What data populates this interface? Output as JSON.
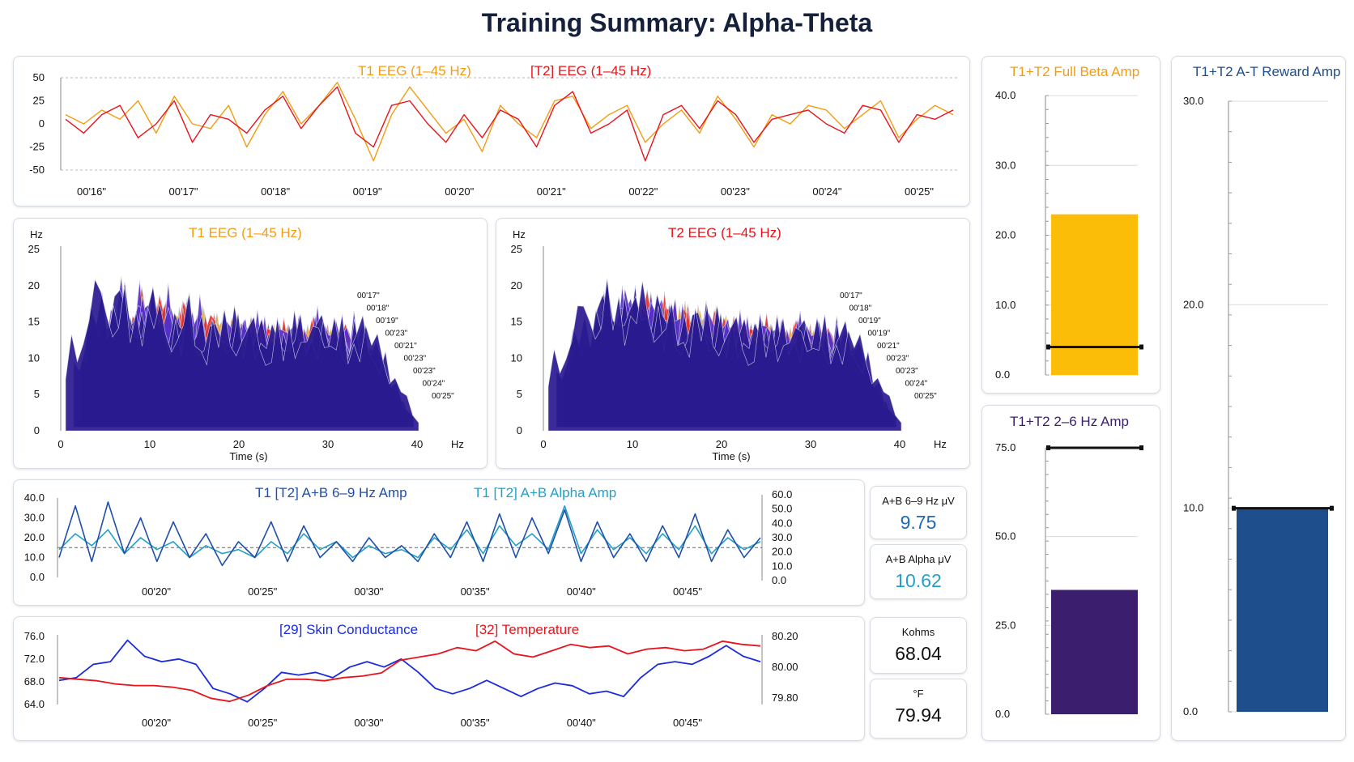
{
  "page": {
    "title": "Training Summary: Alpha-Theta"
  },
  "colors": {
    "t1": "#f39c12",
    "t2": "#e8131b",
    "ab69": "#1f4fa8",
    "alpha": "#23a0c8",
    "skin": "#1a2bdc",
    "temp": "#e8131b",
    "beta": "#fbbd08",
    "low": "#3b1e6e",
    "reward": "#1f4e8c"
  },
  "chart_data": [
    {
      "type": "line",
      "id": "eeg_raw",
      "title_t1": "T1 EEG (1–45 Hz)",
      "title_t2": "[T2] EEG (1–45 Hz)",
      "ylim": [
        -50,
        50
      ],
      "yticks": [
        "50",
        "25",
        "0",
        "-25",
        "-50"
      ],
      "xticks": [
        "00'16\"",
        "00'17\"",
        "00'18\"",
        "00'19\"",
        "00'20\"",
        "00'21\"",
        "00'22\"",
        "00'23\"",
        "00'24\"",
        "00'25\""
      ],
      "series": [
        {
          "values": [
            10,
            0,
            15,
            5,
            25,
            -10,
            30,
            0,
            -5,
            20,
            -25,
            10,
            35,
            0,
            20,
            45,
            5,
            -40,
            10,
            40,
            15,
            -10,
            5,
            -30,
            20,
            0,
            -15,
            25,
            30,
            -5,
            10,
            20,
            -20,
            0,
            15,
            -10,
            30,
            5,
            -25,
            10,
            0,
            20,
            15,
            -5,
            10,
            25,
            -15,
            5,
            20,
            10
          ]
        },
        {
          "values": [
            5,
            -10,
            10,
            20,
            -15,
            0,
            25,
            -20,
            10,
            5,
            -10,
            15,
            30,
            -5,
            20,
            40,
            -10,
            -25,
            20,
            25,
            0,
            -20,
            10,
            -15,
            15,
            5,
            -25,
            20,
            35,
            -10,
            0,
            15,
            -40,
            10,
            20,
            -5,
            25,
            10,
            -20,
            5,
            10,
            15,
            0,
            -10,
            20,
            15,
            -20,
            10,
            5,
            15
          ]
        }
      ]
    },
    {
      "type": "area",
      "id": "spectrum_t1",
      "title": "T1 EEG (1–45 Hz)",
      "ylabel": "Hz",
      "xlabel": "Time (s)",
      "xunit": "Hz",
      "yticks": [
        "25",
        "20",
        "15",
        "10",
        "5",
        "0"
      ],
      "xticks": [
        "0",
        "10",
        "20",
        "30",
        "40"
      ],
      "depth_labels": [
        "00'17\"",
        "00'18\"",
        "00'19\"",
        "00'23\"",
        "00'21\"",
        "00'23\"",
        "00'23\"",
        "00'24\"",
        "00'25\""
      ],
      "peak_profile": [
        14,
        18,
        25,
        25,
        23,
        21,
        24,
        20,
        19,
        22,
        17,
        19,
        20,
        18,
        19,
        17,
        18,
        19,
        17,
        20,
        18,
        17,
        19,
        16,
        12,
        6,
        2
      ]
    },
    {
      "type": "area",
      "id": "spectrum_t2",
      "title": "T2 EEG (1–45 Hz)",
      "ylabel": "Hz",
      "xlabel": "Time (s)",
      "xunit": "Hz",
      "yticks": [
        "25",
        "20",
        "15",
        "10",
        "5",
        "0"
      ],
      "xticks": [
        "0",
        "10",
        "20",
        "30",
        "40"
      ],
      "depth_labels": [
        "00'17\"",
        "00'18\"",
        "00'19\"",
        "00'19\"",
        "00'21\"",
        "00'23\"",
        "00'23\"",
        "00'24\"",
        "00'25\""
      ],
      "peak_profile": [
        12,
        15,
        20,
        24,
        23,
        25,
        22,
        24,
        21,
        20,
        19,
        21,
        20,
        18,
        19,
        17,
        19,
        18,
        17,
        19,
        18,
        17,
        18,
        16,
        12,
        6,
        2
      ]
    },
    {
      "type": "line",
      "id": "amp_69_alpha",
      "title_ab69": "T1 [T2] A+B 6–9 Hz Amp",
      "title_alpha": "T1 [T2] A+B Alpha Amp",
      "ylim": [
        0,
        40
      ],
      "yticks": [
        "40.0",
        "30.0",
        "20.0",
        "10.0",
        "0.0"
      ],
      "y2lim": [
        0,
        60
      ],
      "y2ticks": [
        "60.0",
        "50.0",
        "40.0",
        "30.0",
        "20.0",
        "10.0",
        "0.0"
      ],
      "threshold": 15,
      "xticks": [
        "00'20\"",
        "00'25\"",
        "00'30\"",
        "00'35\"",
        "00'40\"",
        "00'45\""
      ],
      "series": [
        {
          "values": [
            10,
            36,
            8,
            38,
            12,
            30,
            8,
            28,
            10,
            22,
            6,
            18,
            10,
            28,
            8,
            26,
            10,
            18,
            8,
            20,
            10,
            16,
            8,
            22,
            10,
            28,
            8,
            32,
            10,
            30,
            12,
            34,
            8,
            28,
            10,
            22,
            8,
            26,
            10,
            32,
            8,
            24,
            10,
            20
          ]
        },
        {
          "values": [
            14,
            22,
            16,
            24,
            12,
            20,
            14,
            18,
            10,
            16,
            12,
            14,
            10,
            18,
            12,
            22,
            14,
            18,
            10,
            16,
            12,
            14,
            10,
            20,
            14,
            24,
            12,
            26,
            16,
            22,
            14,
            36,
            12,
            24,
            14,
            20,
            12,
            22,
            14,
            26,
            12,
            20,
            14,
            18
          ]
        }
      ]
    },
    {
      "type": "line",
      "id": "skin_temp",
      "title_skin": "[29] Skin Conductance",
      "title_temp": "[32] Temperature",
      "ylim": [
        64,
        77
      ],
      "yticks": [
        "76.0",
        "72.0",
        "68.0",
        "64.0"
      ],
      "y2lim": [
        79.78,
        80.24
      ],
      "y2ticks": [
        "80.20",
        "80.00",
        "79.80"
      ],
      "xticks": [
        "00'20\"",
        "00'25\"",
        "00'30\"",
        "00'35\"",
        "00'40\"",
        "00'45\""
      ],
      "series": [
        {
          "values": [
            68.5,
            69,
            71.5,
            72,
            76,
            73,
            72,
            72.5,
            71.5,
            67,
            66,
            64.5,
            67,
            70,
            69.5,
            70,
            69,
            71,
            72,
            71,
            72.5,
            70,
            67,
            66,
            67,
            68.5,
            67,
            65.5,
            67,
            68,
            67.5,
            66,
            66.5,
            65.5,
            69,
            71.5,
            72,
            71.5,
            73,
            75,
            73,
            72
          ]
        },
        {
          "values": [
            79.97,
            79.96,
            79.95,
            79.93,
            79.92,
            79.92,
            79.91,
            79.89,
            79.84,
            79.82,
            79.86,
            79.92,
            79.96,
            79.96,
            79.95,
            79.97,
            79.98,
            80.0,
            80.08,
            80.1,
            80.12,
            80.16,
            80.14,
            80.2,
            80.12,
            80.1,
            80.14,
            80.18,
            80.16,
            80.17,
            80.12,
            80.15,
            80.16,
            80.14,
            80.15,
            80.2,
            80.18,
            80.17
          ]
        }
      ]
    },
    {
      "type": "bar",
      "id": "beta_amp",
      "title": "T1+T2 Full Beta Amp",
      "ylim": [
        0,
        40
      ],
      "yticks": [
        "40.0",
        "30.0",
        "20.0",
        "10.0",
        "0.0"
      ],
      "value": 23,
      "threshold": 4
    },
    {
      "type": "bar",
      "id": "low_amp",
      "title": "T1+T2 2–6 Hz Amp",
      "ylim": [
        0,
        75
      ],
      "yticks": [
        "75.0",
        "50.0",
        "25.0",
        "0.0"
      ],
      "value": 35,
      "threshold": 75
    },
    {
      "type": "bar",
      "id": "reward_amp",
      "title": "T1+T2 A-T Reward Amp",
      "ylim": [
        0,
        30
      ],
      "yticks": [
        "30.0",
        "20.0",
        "10.0",
        "0.0"
      ],
      "value": 10,
      "threshold": 10
    }
  ],
  "readouts": {
    "ab69": {
      "label": "A+B 6–9 Hz μV",
      "value": "9.75"
    },
    "alpha": {
      "label": "A+B Alpha μV",
      "value": "10.62"
    },
    "kohms": {
      "label": "Kohms",
      "value": "68.04"
    },
    "temp": {
      "label": "°F",
      "value": "79.94"
    }
  }
}
